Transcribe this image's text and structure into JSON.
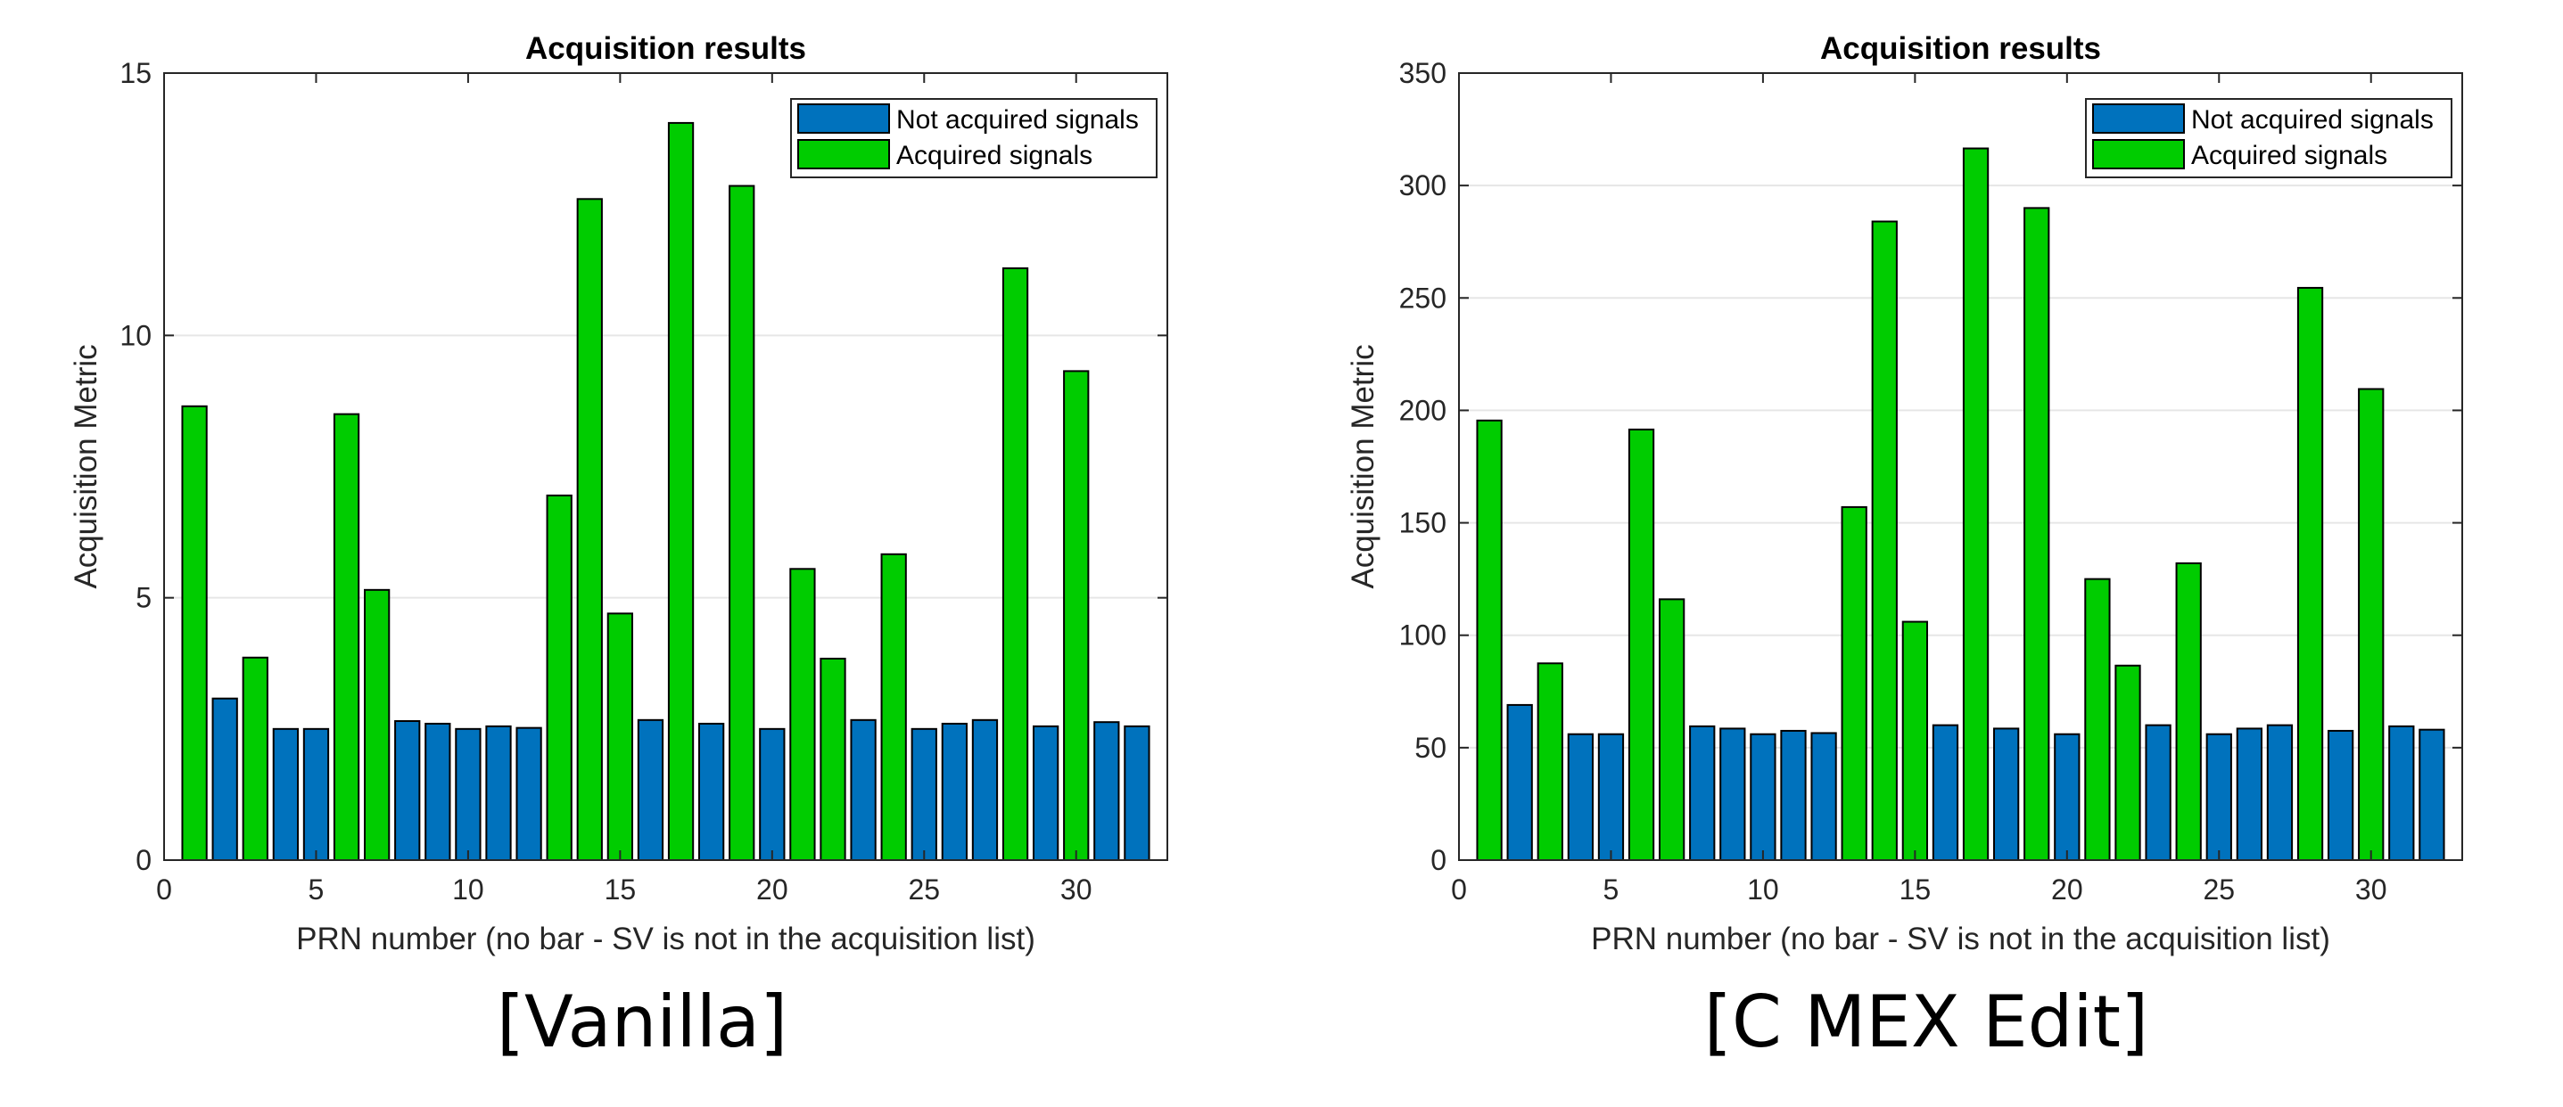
{
  "captions": {
    "left": "[Vanilla]",
    "right": "[C MEX Edit]"
  },
  "colors": {
    "not_acquired": "#0072BD",
    "acquired": "#00CC00",
    "grid": "#e6e6e6",
    "axis": "#262626"
  },
  "chart_data": [
    {
      "type": "bar",
      "title": "Acquisition results",
      "xlabel": "PRN number (no bar - SV is not in the acquisition list)",
      "ylabel": "Acquisition Metric",
      "xlim": [
        0,
        33
      ],
      "ylim": [
        0,
        15
      ],
      "xticks": [
        0,
        5,
        10,
        15,
        20,
        25,
        30
      ],
      "yticks": [
        0,
        5,
        10,
        15
      ],
      "grid": "y",
      "legend_position": "top-right",
      "x": [
        1,
        2,
        3,
        4,
        5,
        6,
        7,
        8,
        9,
        10,
        11,
        12,
        13,
        14,
        15,
        16,
        17,
        18,
        19,
        20,
        21,
        22,
        23,
        24,
        25,
        26,
        27,
        28,
        29,
        30,
        31,
        32
      ],
      "series": [
        {
          "name": "Not acquired signals",
          "color": "#0072BD",
          "values": [
            0,
            3.08,
            0,
            2.5,
            2.5,
            0,
            0,
            2.65,
            2.6,
            2.5,
            2.55,
            2.52,
            0,
            0,
            0,
            2.67,
            0,
            2.6,
            0,
            2.5,
            0,
            0,
            2.67,
            0,
            2.5,
            2.6,
            2.67,
            0,
            2.55,
            0,
            2.63,
            2.55
          ]
        },
        {
          "name": "Acquired signals",
          "color": "#00CC00",
          "values": [
            8.65,
            0,
            3.86,
            0,
            0,
            8.5,
            5.15,
            0,
            0,
            0,
            0,
            0,
            6.95,
            12.6,
            4.7,
            0,
            14.05,
            0,
            12.85,
            0,
            5.55,
            3.84,
            0,
            5.83,
            0,
            0,
            0,
            11.28,
            0,
            9.32,
            0,
            0
          ]
        }
      ]
    },
    {
      "type": "bar",
      "title": "Acquisition results",
      "xlabel": "PRN number (no bar - SV is not in the acquisition list)",
      "ylabel": "Acquisition Metric",
      "xlim": [
        0,
        33
      ],
      "ylim": [
        0,
        350
      ],
      "xticks": [
        0,
        5,
        10,
        15,
        20,
        25,
        30
      ],
      "yticks": [
        0,
        50,
        100,
        150,
        200,
        250,
        300,
        350
      ],
      "grid": "y",
      "legend_position": "top-right",
      "x": [
        1,
        2,
        3,
        4,
        5,
        6,
        7,
        8,
        9,
        10,
        11,
        12,
        13,
        14,
        15,
        16,
        17,
        18,
        19,
        20,
        21,
        22,
        23,
        24,
        25,
        26,
        27,
        28,
        29,
        30,
        31,
        32
      ],
      "series": [
        {
          "name": "Not acquired signals",
          "color": "#0072BD",
          "values": [
            0,
            69,
            0,
            56,
            56,
            0,
            0,
            59.5,
            58.5,
            56,
            57.5,
            56.5,
            0,
            0,
            0,
            60,
            0,
            58.5,
            0,
            56,
            0,
            0,
            60,
            0,
            56,
            58.5,
            60,
            0,
            57.5,
            0,
            59.5,
            58
          ]
        },
        {
          "name": "Acquired signals",
          "color": "#00CC00",
          "values": [
            195.5,
            0,
            87.5,
            0,
            0,
            191.5,
            116,
            0,
            0,
            0,
            0,
            0,
            157,
            284,
            106,
            0,
            316.5,
            0,
            290,
            0,
            125,
            86.5,
            0,
            132,
            0,
            0,
            0,
            254.5,
            0,
            209.5,
            0,
            0
          ]
        }
      ]
    }
  ]
}
